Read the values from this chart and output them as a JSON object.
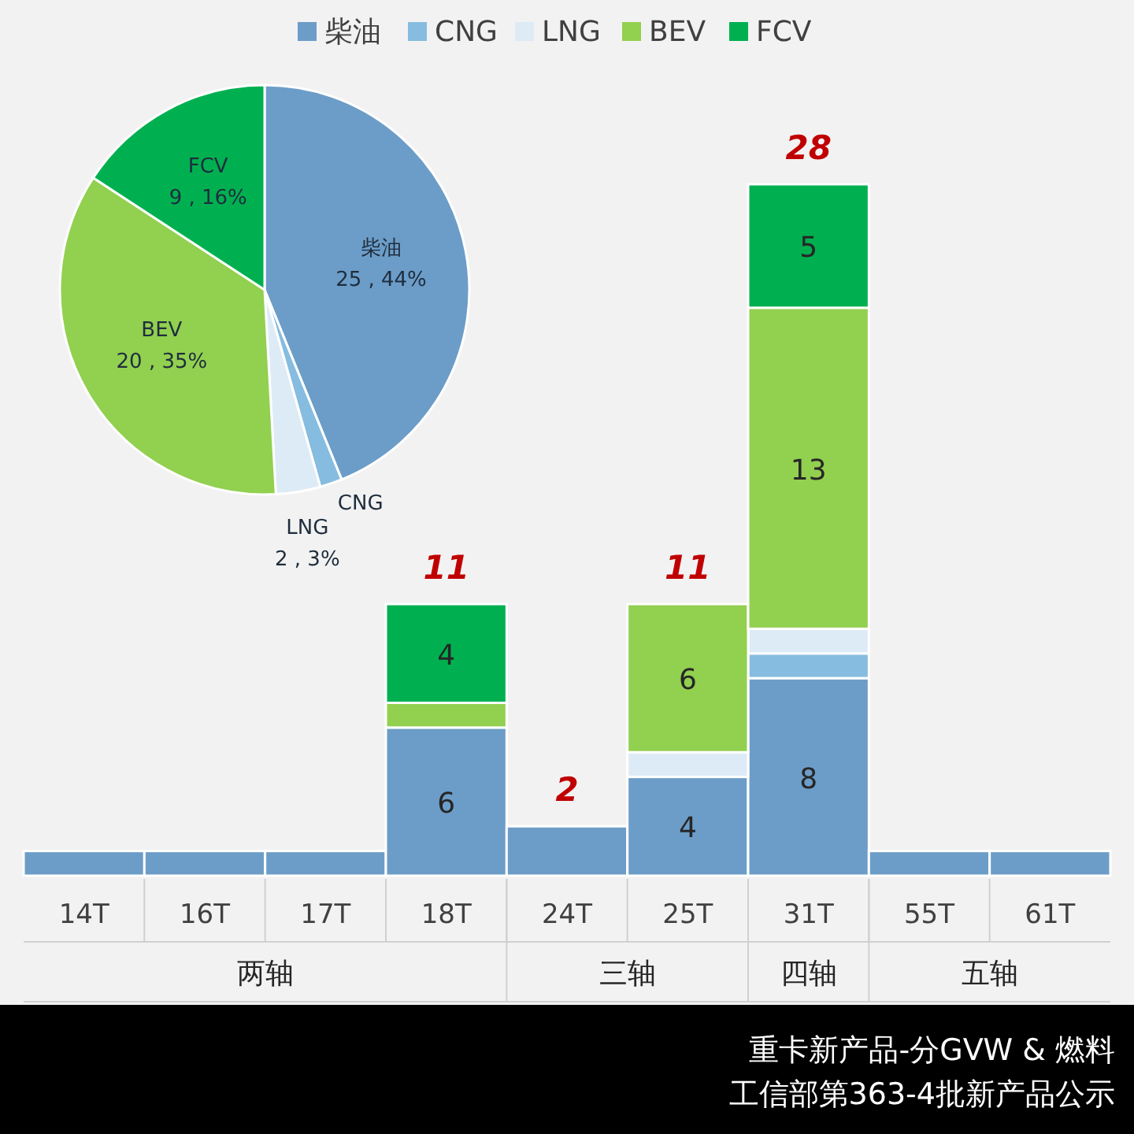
{
  "chart_data": [
    {
      "type": "pie",
      "categories": [
        "柴油",
        "CNG",
        "LNG",
        "BEV",
        "FCV"
      ],
      "values": [
        25,
        1,
        2,
        20,
        9
      ],
      "colors": [
        "#6c9dc8",
        "#86bcdf",
        "#ddebf7",
        "#92d050",
        "#00b050"
      ],
      "value_labels": [
        "25 , 44%",
        null,
        "2 , 3%",
        "20 , 35%",
        "9 , 16%"
      ]
    },
    {
      "type": "bar",
      "stacked": true,
      "legend": "top",
      "title": "重卡新产品-分GVW & 燃料",
      "subtitle": "工信部第363-4批新产品公示",
      "categories": [
        "14T",
        "16T",
        "17T",
        "18T",
        "24T",
        "25T",
        "31T",
        "55T",
        "61T"
      ],
      "series": [
        {
          "name": "柴油",
          "color": "#6c9dc8",
          "values": [
            1,
            1,
            1,
            6,
            2,
            4,
            8,
            1,
            1
          ],
          "value_labels": [
            null,
            null,
            null,
            "6",
            null,
            "4",
            "8",
            null,
            null
          ]
        },
        {
          "name": "CNG",
          "color": "#86bcdf",
          "values": [
            0,
            0,
            0,
            0,
            0,
            0,
            1,
            0,
            0
          ]
        },
        {
          "name": "LNG",
          "color": "#ddebf7",
          "values": [
            0,
            0,
            0,
            0,
            0,
            1,
            1,
            0,
            0
          ]
        },
        {
          "name": "BEV",
          "color": "#92d050",
          "values": [
            0,
            0,
            0,
            1,
            0,
            6,
            13,
            0,
            0
          ],
          "value_labels": [
            null,
            null,
            null,
            null,
            null,
            "6",
            "13",
            null,
            null
          ]
        },
        {
          "name": "FCV",
          "color": "#00b050",
          "values": [
            0,
            0,
            0,
            4,
            0,
            0,
            5,
            0,
            0
          ],
          "value_labels": [
            null,
            null,
            null,
            "4",
            null,
            null,
            "5",
            null,
            null
          ]
        }
      ],
      "totals": [
        null,
        null,
        null,
        "11",
        "2",
        "11",
        "28",
        null,
        null
      ],
      "annotations": [
        "两轴",
        "三轴",
        "四轴",
        "五轴"
      ]
    }
  ]
}
